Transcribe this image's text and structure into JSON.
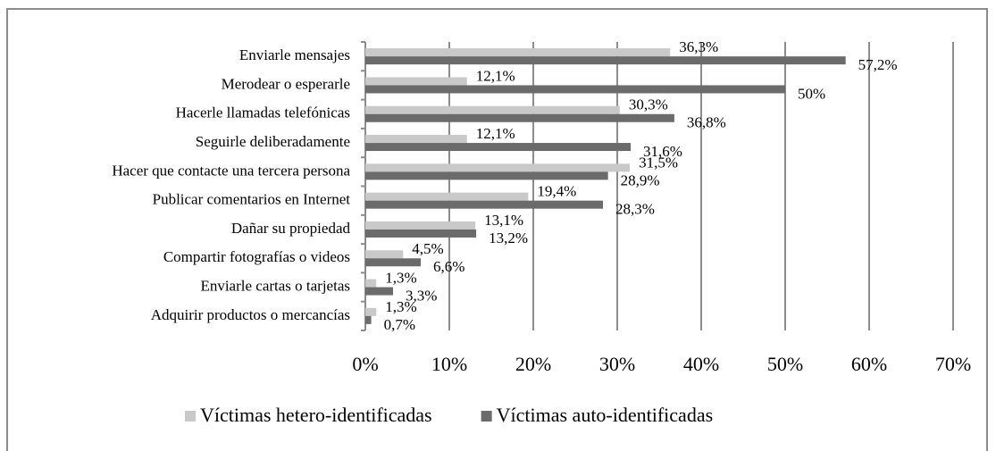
{
  "chart_data": {
    "type": "hbar",
    "categories": [
      "Enviarle mensajes",
      "Merodear o esperarle",
      "Hacerle llamadas telefónicas",
      "Seguirle deliberadamente",
      "Hacer que contacte una tercera persona",
      "Publicar comentarios en Internet",
      "Dañar su propiedad",
      "Compartir fotografías o videos",
      "Enviarle cartas o tarjetas",
      "Adquirir productos o mercancías"
    ],
    "series": [
      {
        "name": "Víctimas hetero-identificadas",
        "color": "#c9c9c9",
        "values": [
          36.3,
          12.1,
          30.3,
          12.1,
          31.5,
          19.4,
          13.1,
          4.5,
          1.3,
          1.3
        ],
        "value_labels": [
          "36,3%",
          "12,1%",
          "30,3%",
          "12,1%",
          "31,5%",
          "19,4%",
          "13,1%",
          "4,5%",
          "1,3%",
          "1,3%"
        ]
      },
      {
        "name": "Víctimas auto-identificadas",
        "color": "#6b6b6b",
        "values": [
          57.2,
          50,
          36.8,
          31.6,
          28.9,
          28.3,
          13.2,
          6.6,
          3.3,
          0.7
        ],
        "value_labels": [
          "57,2%",
          "50%",
          "36,8%",
          "31,6%",
          "28,9%",
          "28,3%",
          "13,2%",
          "6,6%",
          "3,3%",
          "0,7%"
        ]
      }
    ],
    "xlim": [
      0,
      70
    ],
    "xticks": [
      {
        "value": 0,
        "label": "0%"
      },
      {
        "value": 10,
        "label": "10%"
      },
      {
        "value": 20,
        "label": "20%"
      },
      {
        "value": 30,
        "label": "30%"
      },
      {
        "value": 40,
        "label": "40%"
      },
      {
        "value": 50,
        "label": "50%"
      },
      {
        "value": 60,
        "label": "60%"
      },
      {
        "value": 70,
        "label": "70%"
      }
    ],
    "grid": true,
    "legend": "bottom"
  }
}
